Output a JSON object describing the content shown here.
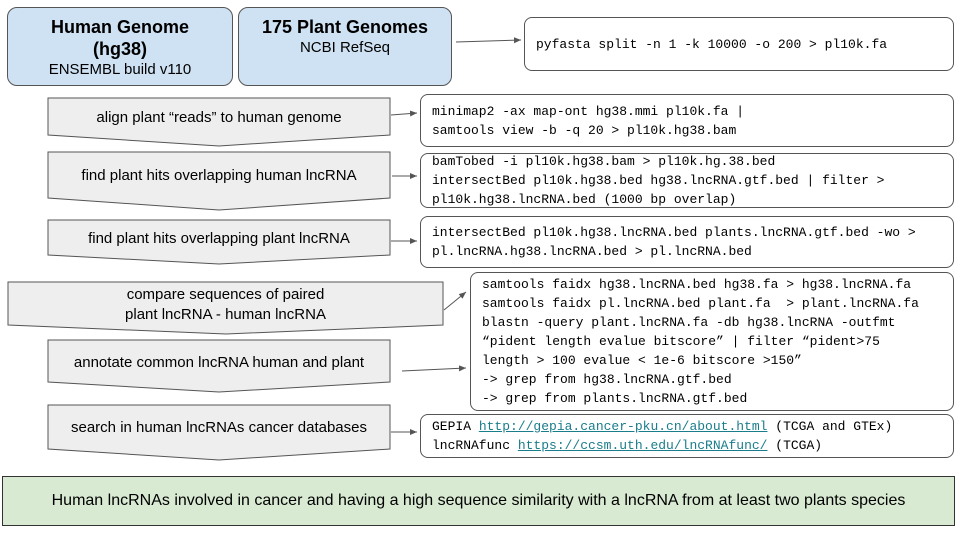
{
  "sources": [
    {
      "title": [
        "Human Genome",
        "(hg38)"
      ],
      "subtitle": "ENSEMBL build v110"
    },
    {
      "title": [
        "175 Plant Genomes"
      ],
      "subtitle": "NCBI RefSeq"
    }
  ],
  "steps": [
    {
      "label": [
        "align plant “reads” to human genome"
      ]
    },
    {
      "label": [
        "find plant hits overlapping human lncRNA"
      ]
    },
    {
      "label": [
        "find plant hits overlapping plant lncRNA"
      ]
    },
    {
      "label": [
        "compare sequences of paired",
        "plant lncRNA - human lncRNA"
      ]
    },
    {
      "label": [
        "annotate common lncRNA human and plant"
      ]
    },
    {
      "label": [
        "search in human lncRNAs cancer databases"
      ]
    }
  ],
  "commands": [
    [
      "pyfasta split -n 1 -k 10000 -o 200 > pl10k.fa"
    ],
    [
      "minimap2 -ax map-ont hg38.mmi pl10k.fa |",
      "samtools view -b -q 20 > pl10k.hg38.bam"
    ],
    [
      "bamTobed -i pl10k.hg38.bam > pl10k.hg.38.bed",
      "intersectBed pl10k.hg38.bed hg38.lncRNA.gtf.bed | filter >",
      "pl10k.hg38.lncRNA.bed (1000 bp overlap)"
    ],
    [
      "intersectBed pl10k.hg38.lncRNA.bed plants.lncRNA.gtf.bed -wo >",
      "pl.lncRNA.hg38.lncRNA.bed > pl.lncRNA.bed"
    ],
    [
      "samtools faidx hg38.lncRNA.bed hg38.fa > hg38.lncRNA.fa",
      "samtools faidx pl.lncRNA.bed plant.fa  > plant.lncRNA.fa",
      "blastn -query plant.lncRNA.fa -db hg38.lncRNA -outfmt",
      "“pident length evalue bitscore” | filter “pident>75",
      "length > 100 evalue < 1e-6 bitscore >150”",
      "-> grep from hg38.lncRNA.gtf.bed",
      "-> grep from plants.lncRNA.gtf.bed"
    ],
    [
      [
        "GEPIA ",
        {
          "link": "http://gepia.cancer-pku.cn/about.html"
        },
        " (TCGA and GTEx)"
      ],
      [
        "lncRNAfunc ",
        {
          "link": "https://ccsm.uth.edu/lncRNAfunc/"
        },
        " (TCGA)"
      ]
    ]
  ],
  "result": "Human lncRNAs involved in cancer and having a high sequence similarity with a lncRNA from at least two plants species"
}
